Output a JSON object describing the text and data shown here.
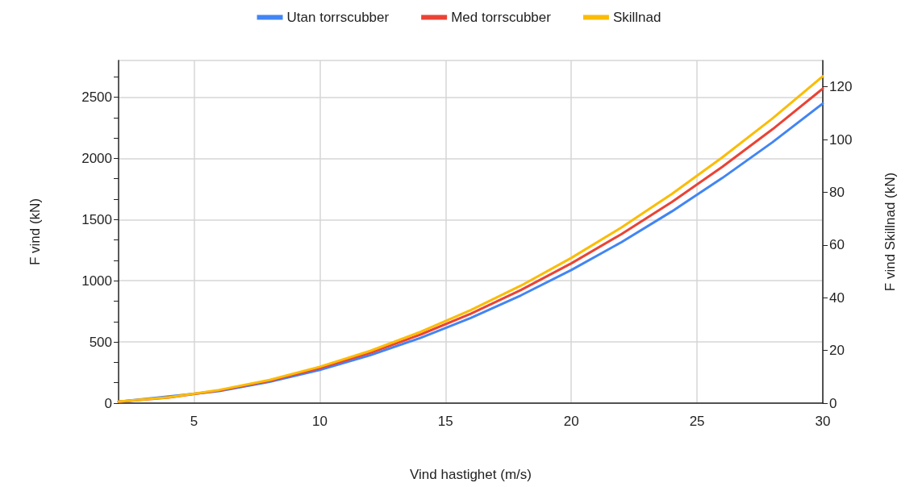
{
  "chart_data": {
    "type": "line",
    "xlabel": "Vind hastighet (m/s)",
    "ylabel": "F vind (kN)",
    "y2label": "F vind Skillnad (kN)",
    "x": [
      2,
      4,
      6,
      8,
      10,
      12,
      14,
      16,
      18,
      20,
      22,
      24,
      26,
      28,
      30
    ],
    "xlim": [
      2,
      30
    ],
    "xticks": [
      5,
      10,
      15,
      20,
      25,
      30
    ],
    "ylim": [
      0,
      2800
    ],
    "yticks": [
      0,
      {
        "value": 166.7,
        "label": null
      },
      {
        "value": 333.3,
        "label": null
      },
      500,
      {
        "value": 666.7,
        "label": null
      },
      {
        "value": 833.3,
        "label": null
      },
      1000,
      {
        "value": 1166.7,
        "label": null
      },
      {
        "value": 1333.3,
        "label": null
      },
      1500,
      {
        "value": 1666.7,
        "label": null
      },
      {
        "value": 1833.3,
        "label": null
      },
      2000,
      {
        "value": 2166.7,
        "label": null
      },
      {
        "value": 2333.3,
        "label": null
      },
      2500,
      {
        "value": 2666.7,
        "label": null
      }
    ],
    "y2lim": [
      0,
      130
    ],
    "y2ticks": [
      0,
      20,
      40,
      60,
      80,
      100,
      120
    ],
    "grid": true,
    "legend": "top",
    "marker": "none",
    "line_style": "solid",
    "series": [
      {
        "name": "Utan torrscubber",
        "color": "#4285f4",
        "x": [
          2,
          6,
          8,
          10,
          12,
          14,
          16,
          18,
          20,
          22,
          24,
          26,
          28,
          30
        ],
        "values": [
          11,
          98,
          174,
          272,
          392,
          533,
          696,
          881,
          1088,
          1316,
          1567,
          1839,
          2132,
          2448
        ]
      },
      {
        "name": "Med torrscubber",
        "color": "#ea4335",
        "values": [
          11,
          46,
          103,
          183,
          286,
          411,
          560,
          731,
          925,
          1142,
          1382,
          1644,
          1930,
          2238,
          2570
        ]
      },
      {
        "name": "Skillnad",
        "color": "#fbbc04",
        "axis": "y2",
        "values": [
          0.6,
          2.2,
          5,
          8.8,
          13.8,
          19.8,
          27,
          35.3,
          44.6,
          55.1,
          66.7,
          79.4,
          93.2,
          108,
          124
        ]
      }
    ]
  }
}
